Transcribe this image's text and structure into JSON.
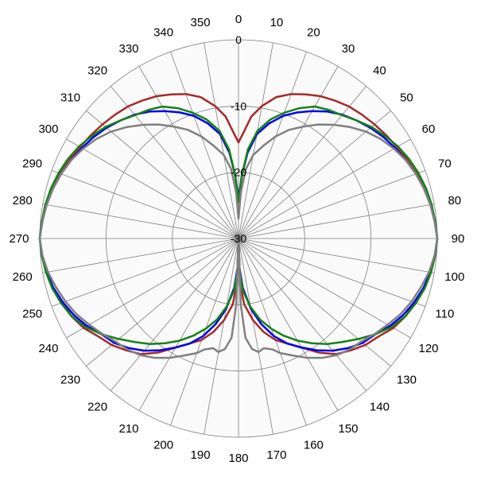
{
  "chart_data": {
    "type": "line",
    "subtype": "polar",
    "title": "",
    "angle_labels": [
      "0",
      "10",
      "20",
      "30",
      "40",
      "50",
      "60",
      "70",
      "80",
      "90",
      "100",
      "110",
      "120",
      "130",
      "140",
      "150",
      "160",
      "170",
      "180",
      "190",
      "200",
      "210",
      "220",
      "230",
      "240",
      "250",
      "260",
      "270",
      "280",
      "290",
      "300",
      "310",
      "320",
      "330",
      "340",
      "350"
    ],
    "ring_labels": [
      "0",
      "-10",
      "-20",
      "-30"
    ],
    "r_range": [
      -30,
      0
    ],
    "grid": true,
    "legend": "none",
    "colors": {
      "background": "#fafafa",
      "grid": "#7f7f7f",
      "red": "#a52a2a",
      "blue": "#0000ee",
      "green": "#148214",
      "gray": "#808080"
    },
    "series": [
      {
        "color": "#a52a2a",
        "points": [
          [
            0,
            -15.5
          ],
          [
            3,
            -13.8
          ],
          [
            6,
            -11.5
          ],
          [
            10,
            -9.7
          ],
          [
            15,
            -7.9
          ],
          [
            20,
            -6.8
          ],
          [
            25,
            -6.0
          ],
          [
            30,
            -5.2
          ],
          [
            35,
            -4.6
          ],
          [
            40,
            -4.0
          ],
          [
            45,
            -3.6
          ],
          [
            50,
            -3.2
          ],
          [
            55,
            -2.8
          ],
          [
            60,
            -2.4
          ],
          [
            65,
            -1.9
          ],
          [
            70,
            -1.4
          ],
          [
            75,
            -0.9
          ],
          [
            80,
            -0.5
          ],
          [
            85,
            -0.2
          ],
          [
            90,
            0
          ],
          [
            95,
            -0.2
          ],
          [
            100,
            -0.6
          ],
          [
            105,
            -1.0
          ],
          [
            110,
            -1.7
          ],
          [
            115,
            -2.2
          ],
          [
            120,
            -3.0
          ],
          [
            125,
            -4.2
          ],
          [
            130,
            -5.0
          ],
          [
            135,
            -6.1
          ],
          [
            140,
            -7.2
          ],
          [
            145,
            -9.0
          ],
          [
            150,
            -11.0
          ],
          [
            155,
            -12.5
          ],
          [
            160,
            -13.7
          ],
          [
            165,
            -15.4
          ],
          [
            170,
            -17.5
          ],
          [
            175,
            -20.0
          ],
          [
            178,
            -23.0
          ],
          [
            180,
            -30
          ]
        ]
      },
      {
        "color": "#0000ee",
        "points": [
          [
            0,
            -24.0
          ],
          [
            3,
            -20.5
          ],
          [
            6,
            -17.0
          ],
          [
            10,
            -14.0
          ],
          [
            15,
            -12.0
          ],
          [
            20,
            -10.3
          ],
          [
            25,
            -9.0
          ],
          [
            30,
            -7.8
          ],
          [
            35,
            -6.6
          ],
          [
            40,
            -5.6
          ],
          [
            45,
            -4.8
          ],
          [
            50,
            -4.0
          ],
          [
            55,
            -3.3
          ],
          [
            60,
            -2.7
          ],
          [
            65,
            -2.1
          ],
          [
            70,
            -1.5
          ],
          [
            75,
            -1.0
          ],
          [
            80,
            -0.6
          ],
          [
            85,
            -0.2
          ],
          [
            90,
            0
          ],
          [
            95,
            -0.2
          ],
          [
            100,
            -0.6
          ],
          [
            105,
            -1.1
          ],
          [
            110,
            -1.8
          ],
          [
            115,
            -2.6
          ],
          [
            120,
            -3.6
          ],
          [
            125,
            -4.8
          ],
          [
            130,
            -5.5
          ],
          [
            135,
            -6.6
          ],
          [
            140,
            -7.9
          ],
          [
            145,
            -9.4
          ],
          [
            150,
            -11.0
          ],
          [
            155,
            -12.5
          ],
          [
            160,
            -14.3
          ],
          [
            165,
            -16.6
          ],
          [
            170,
            -19.2
          ],
          [
            175,
            -22.5
          ],
          [
            178,
            -25.5
          ],
          [
            180,
            -30
          ]
        ]
      },
      {
        "color": "#148214",
        "points": [
          [
            0,
            -24.5
          ],
          [
            3,
            -20.5
          ],
          [
            6,
            -16.5
          ],
          [
            10,
            -13.5
          ],
          [
            15,
            -11.4
          ],
          [
            20,
            -9.8
          ],
          [
            25,
            -8.3
          ],
          [
            30,
            -7.0
          ],
          [
            35,
            -6.3
          ],
          [
            40,
            -5.7
          ],
          [
            45,
            -4.8
          ],
          [
            50,
            -3.8
          ],
          [
            55,
            -3.0
          ],
          [
            60,
            -2.2
          ],
          [
            65,
            -1.6
          ],
          [
            70,
            -1.1
          ],
          [
            75,
            -0.7
          ],
          [
            80,
            -0.4
          ],
          [
            85,
            -0.2
          ],
          [
            90,
            0
          ],
          [
            95,
            -0.2
          ],
          [
            100,
            -0.5
          ],
          [
            105,
            -0.9
          ],
          [
            110,
            -1.5
          ],
          [
            115,
            -2.2
          ],
          [
            120,
            -3.3
          ],
          [
            125,
            -4.8
          ],
          [
            130,
            -6.4
          ],
          [
            135,
            -7.9
          ],
          [
            140,
            -9.2
          ],
          [
            145,
            -10.7
          ],
          [
            150,
            -12.2
          ],
          [
            155,
            -13.8
          ],
          [
            160,
            -15.5
          ],
          [
            165,
            -17.3
          ],
          [
            170,
            -19.5
          ],
          [
            175,
            -22.0
          ],
          [
            178,
            -25.0
          ],
          [
            180,
            -30
          ]
        ]
      },
      {
        "color": "#808080",
        "points": [
          [
            0,
            -27.0
          ],
          [
            3,
            -23.0
          ],
          [
            6,
            -19.5
          ],
          [
            10,
            -17.2
          ],
          [
            15,
            -15.5
          ],
          [
            20,
            -13.6
          ],
          [
            25,
            -11.9
          ],
          [
            30,
            -10.5
          ],
          [
            35,
            -9.0
          ],
          [
            40,
            -7.6
          ],
          [
            45,
            -6.2
          ],
          [
            50,
            -4.9
          ],
          [
            55,
            -3.8
          ],
          [
            60,
            -2.9
          ],
          [
            65,
            -2.1
          ],
          [
            70,
            -1.5
          ],
          [
            75,
            -1.0
          ],
          [
            80,
            -0.6
          ],
          [
            85,
            -0.3
          ],
          [
            90,
            0
          ],
          [
            95,
            -0.3
          ],
          [
            100,
            -0.8
          ],
          [
            105,
            -1.5
          ],
          [
            110,
            -2.2
          ],
          [
            115,
            -3.0
          ],
          [
            120,
            -4.0
          ],
          [
            125,
            -4.9
          ],
          [
            130,
            -5.8
          ],
          [
            135,
            -6.3
          ],
          [
            140,
            -7.0
          ],
          [
            145,
            -8.0
          ],
          [
            150,
            -9.2
          ],
          [
            155,
            -10.5
          ],
          [
            160,
            -11.6
          ],
          [
            163,
            -12.5
          ],
          [
            167,
            -13.0
          ],
          [
            170,
            -12.6
          ],
          [
            173,
            -13.2
          ],
          [
            176,
            -15.0
          ],
          [
            178,
            -20.0
          ],
          [
            180,
            -30
          ]
        ]
      }
    ]
  }
}
